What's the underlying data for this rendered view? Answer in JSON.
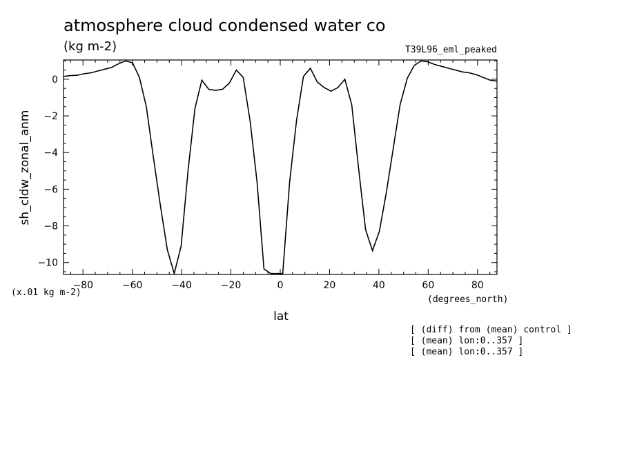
{
  "chart_data": {
    "type": "line",
    "title": "atmosphere cloud condensed water co",
    "subtitle": "(kg m-2)",
    "experiment": "T39L96_eml_peaked",
    "ylabel": "sh_cldw_zonal_anm",
    "xlabel": "lat",
    "y_units": "(x.01 kg m-2)",
    "x_units": "(degrees_north)",
    "notes": [
      "[ (diff) from (mean) control ]",
      "[ (mean) lon:0..357 ]",
      "[ (mean) lon:0..357 ]"
    ],
    "xlim": [
      -87.9,
      87.9
    ],
    "ylim": [
      -10.65,
      1.05
    ],
    "xticks": [
      -80,
      -60,
      -40,
      -20,
      0,
      20,
      40,
      60,
      80
    ],
    "xtick_labels": [
      "−80",
      "−60",
      "−40",
      "−20",
      "0",
      "20",
      "40",
      "60",
      "80"
    ],
    "yticks": [
      0,
      -2,
      -4,
      -6,
      -8,
      -10
    ],
    "ytick_labels": [
      "0",
      "−2",
      "−4",
      "−6",
      "−8",
      "−10"
    ],
    "x": [
      -87.9,
      -85.1,
      -82.3,
      -79.5,
      -76.7,
      -73.9,
      -71.1,
      -68.3,
      -65.5,
      -62.7,
      -59.9,
      -57.1,
      -54.3,
      -51.5,
      -48.6,
      -45.8,
      -43.0,
      -40.2,
      -37.4,
      -34.6,
      -31.8,
      -29.0,
      -26.2,
      -23.4,
      -20.6,
      -17.8,
      -15.0,
      -12.2,
      -9.4,
      -6.6,
      -3.8,
      -1.0,
      1.0,
      3.8,
      6.6,
      9.4,
      12.2,
      15.0,
      17.8,
      20.6,
      23.4,
      26.2,
      29.0,
      31.8,
      34.6,
      37.4,
      40.2,
      43.0,
      45.8,
      48.6,
      51.5,
      54.3,
      57.1,
      59.9,
      62.7,
      65.5,
      68.3,
      71.1,
      73.9,
      76.7,
      79.5,
      82.3,
      85.1,
      87.9
    ],
    "values": [
      0.15,
      0.2,
      0.22,
      0.3,
      0.35,
      0.45,
      0.55,
      0.65,
      0.85,
      1.0,
      0.9,
      0.1,
      -1.5,
      -4.2,
      -6.9,
      -9.3,
      -10.6,
      -9.1,
      -5.0,
      -1.6,
      -0.05,
      -0.55,
      -0.6,
      -0.55,
      -0.2,
      0.5,
      0.1,
      -2.3,
      -5.6,
      -10.35,
      -10.6,
      -10.6,
      -10.6,
      -5.6,
      -2.25,
      0.15,
      0.6,
      -0.15,
      -0.45,
      -0.65,
      -0.45,
      0.0,
      -1.4,
      -4.9,
      -8.2,
      -9.35,
      -8.3,
      -6.2,
      -3.8,
      -1.4,
      0.05,
      0.75,
      1.0,
      0.95,
      0.8,
      0.7,
      0.6,
      0.5,
      0.4,
      0.35,
      0.25,
      0.1,
      -0.05,
      -0.1
    ],
    "grid": false,
    "legend": "none"
  }
}
